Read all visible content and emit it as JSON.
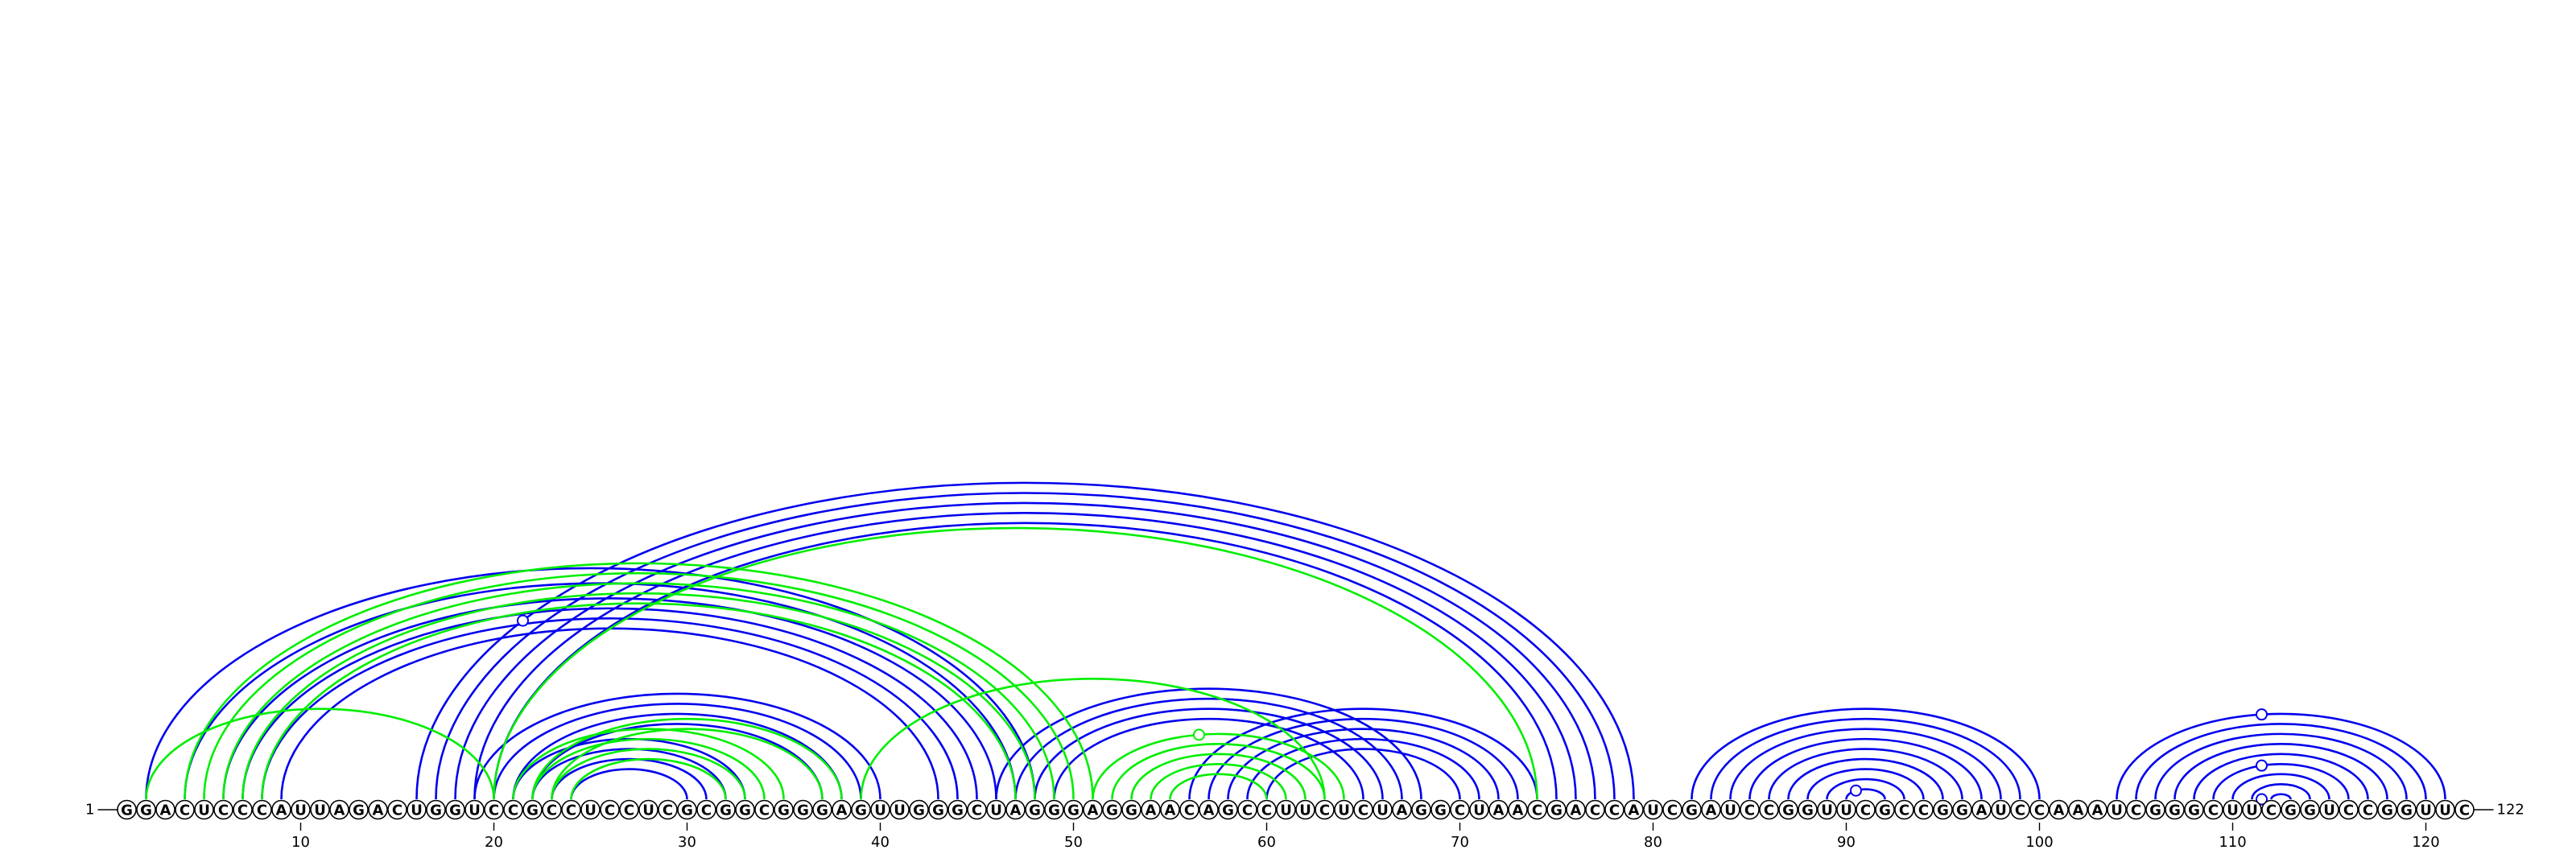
{
  "sequence": "GGACUCCCAUUAGACUGGUCCGCCUCCUCGCGGCGGGAGUUGGGCUAGGGAGGAACAGCCUUCUCUAGGCUAACGACCAUCGAUCCGGUUCGCCGGAUCCAAAUCGGGCUUCGGUCCGGUUC",
  "start_label": "1",
  "end_label": "122",
  "ticks": [
    10,
    20,
    30,
    40,
    50,
    60,
    70,
    80,
    90,
    100,
    110,
    120
  ],
  "colors": {
    "blue": "#0000ee",
    "green": "#00ee00"
  },
  "arcs": {
    "blue": [
      [
        2,
        48
      ],
      [
        4,
        47
      ],
      [
        6,
        46
      ],
      [
        7,
        45
      ],
      [
        8,
        44
      ],
      [
        9,
        43
      ],
      [
        16,
        79
      ],
      [
        17,
        78
      ],
      [
        18,
        77
      ],
      [
        19,
        76
      ],
      [
        20,
        75
      ],
      [
        19,
        40
      ],
      [
        20,
        39
      ],
      [
        21,
        38
      ],
      [
        22,
        37
      ],
      [
        21,
        33
      ],
      [
        22,
        32
      ],
      [
        23,
        31
      ],
      [
        24,
        30
      ],
      [
        46,
        68
      ],
      [
        47,
        67
      ],
      [
        48,
        66
      ],
      [
        49,
        65
      ],
      [
        56,
        74
      ],
      [
        57,
        73
      ],
      [
        58,
        72
      ],
      [
        59,
        71
      ],
      [
        60,
        70
      ],
      [
        82,
        100
      ],
      [
        83,
        99
      ],
      [
        84,
        98
      ],
      [
        85,
        97
      ],
      [
        86,
        96
      ],
      [
        87,
        95
      ],
      [
        88,
        94
      ],
      [
        89,
        93
      ],
      [
        90,
        92
      ],
      [
        104,
        121
      ],
      [
        105,
        120
      ],
      [
        106,
        119
      ],
      [
        107,
        118
      ],
      [
        108,
        117
      ],
      [
        109,
        116
      ],
      [
        110,
        115
      ],
      [
        111,
        114
      ],
      [
        112,
        113
      ]
    ],
    "green": [
      [
        2,
        20
      ],
      [
        4,
        51
      ],
      [
        5,
        50
      ],
      [
        6,
        49
      ],
      [
        7,
        48
      ],
      [
        8,
        47
      ],
      [
        20,
        74
      ],
      [
        39,
        63
      ],
      [
        21,
        35
      ],
      [
        22,
        34
      ],
      [
        23,
        33
      ],
      [
        24,
        32
      ],
      [
        22,
        38
      ],
      [
        23,
        37
      ],
      [
        51,
        64
      ],
      [
        52,
        63
      ],
      [
        53,
        62
      ],
      [
        54,
        61
      ],
      [
        55,
        60
      ]
    ]
  },
  "markers": [
    {
      "pos": 21.5,
      "arc": [
        16,
        79
      ],
      "color": "blue"
    },
    {
      "pos": 56.5,
      "arc": [
        51,
        64
      ],
      "color": "green"
    },
    {
      "pos": 90.5,
      "arc": [
        90,
        92
      ],
      "color": "blue"
    },
    {
      "pos": 111.5,
      "arc": [
        104,
        121
      ],
      "color": "blue"
    },
    {
      "pos": 111.5,
      "arc": [
        109,
        116
      ],
      "color": "blue"
    },
    {
      "pos": 111.5,
      "arc": [
        112,
        113
      ],
      "color": "blue"
    }
  ]
}
